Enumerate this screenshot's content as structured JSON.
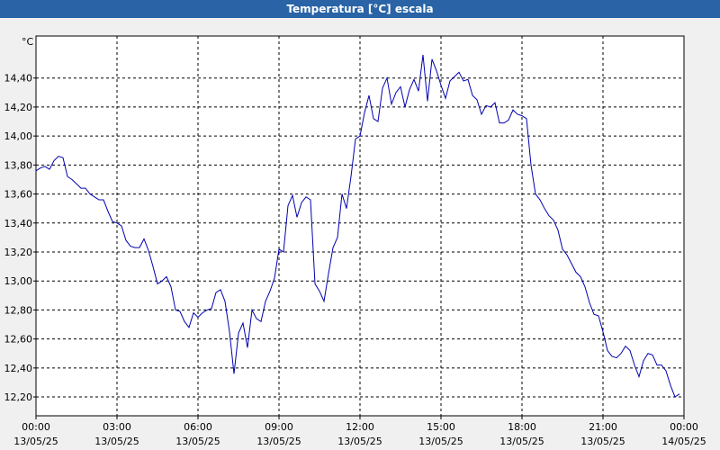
{
  "chart_data": {
    "type": "line",
    "title": "Temperatura [°C] escala",
    "y_label": "°C",
    "xlim": [
      0,
      1440
    ],
    "xticks": [
      {
        "value": 0,
        "label": "00:00",
        "date": "13/05/25"
      },
      {
        "value": 180,
        "label": "03:00",
        "date": "13/05/25"
      },
      {
        "value": 360,
        "label": "06:00",
        "date": "13/05/25"
      },
      {
        "value": 540,
        "label": "09:00",
        "date": "13/05/25"
      },
      {
        "value": 720,
        "label": "12:00",
        "date": "13/05/25"
      },
      {
        "value": 900,
        "label": "15:00",
        "date": "13/05/25"
      },
      {
        "value": 1080,
        "label": "18:00",
        "date": "13/05/25"
      },
      {
        "value": 1260,
        "label": "21:00",
        "date": "13/05/25"
      },
      {
        "value": 1440,
        "label": "00:00",
        "date": "14/05/25"
      }
    ],
    "ylim": [
      12.07,
      14.69
    ],
    "yticks": [
      {
        "value": 12.2,
        "label": "12,20"
      },
      {
        "value": 12.4,
        "label": "12,40"
      },
      {
        "value": 12.6,
        "label": "12,60"
      },
      {
        "value": 12.8,
        "label": "12,80"
      },
      {
        "value": 13.0,
        "label": "13,00"
      },
      {
        "value": 13.2,
        "label": "13,20"
      },
      {
        "value": 13.4,
        "label": "13,40"
      },
      {
        "value": 13.6,
        "label": "13,60"
      },
      {
        "value": 13.8,
        "label": "13,80"
      },
      {
        "value": 14.0,
        "label": "14,00"
      },
      {
        "value": 14.2,
        "label": "14,20"
      },
      {
        "value": 14.4,
        "label": "14,40"
      }
    ],
    "grid": true,
    "x": [
      0,
      10,
      20,
      30,
      40,
      50,
      60,
      70,
      80,
      90,
      100,
      110,
      120,
      130,
      140,
      150,
      160,
      170,
      180,
      190,
      200,
      210,
      220,
      230,
      240,
      250,
      260,
      270,
      280,
      290,
      300,
      310,
      320,
      330,
      340,
      350,
      360,
      370,
      380,
      390,
      400,
      410,
      420,
      430,
      440,
      450,
      460,
      470,
      480,
      490,
      500,
      510,
      520,
      530,
      540,
      550,
      560,
      570,
      580,
      590,
      600,
      610,
      620,
      630,
      640,
      650,
      660,
      670,
      680,
      690,
      700,
      710,
      720,
      730,
      740,
      750,
      760,
      770,
      780,
      790,
      800,
      810,
      820,
      830,
      840,
      850,
      860,
      870,
      880,
      890,
      900,
      910,
      920,
      930,
      940,
      950,
      960,
      970,
      980,
      990,
      1000,
      1010,
      1020,
      1030,
      1040,
      1050,
      1060,
      1070,
      1080,
      1090,
      1100,
      1110,
      1120,
      1130,
      1140,
      1150,
      1160,
      1170,
      1180,
      1190,
      1200,
      1210,
      1220,
      1230,
      1240,
      1250,
      1260,
      1270,
      1280,
      1290,
      1300,
      1310,
      1320,
      1330,
      1340,
      1350,
      1360,
      1370,
      1380,
      1390,
      1400,
      1410,
      1420,
      1430
    ],
    "series": [
      {
        "color": "#0000b0",
        "values": [
          13.76,
          13.78,
          13.79,
          13.77,
          13.83,
          13.86,
          13.85,
          13.72,
          13.7,
          13.67,
          13.64,
          13.64,
          13.6,
          13.58,
          13.56,
          13.56,
          13.48,
          13.41,
          13.4,
          13.38,
          13.28,
          13.24,
          13.23,
          13.23,
          13.29,
          13.21,
          13.1,
          12.98,
          13.0,
          13.03,
          12.96,
          12.8,
          12.79,
          12.72,
          12.68,
          12.78,
          12.75,
          12.78,
          12.8,
          12.81,
          12.92,
          12.94,
          12.86,
          12.65,
          12.36,
          12.64,
          12.71,
          12.54,
          12.8,
          12.74,
          12.72,
          12.86,
          12.93,
          13.02,
          13.22,
          13.2,
          13.52,
          13.59,
          13.44,
          13.54,
          13.58,
          13.56,
          12.98,
          12.93,
          12.86,
          13.05,
          13.23,
          13.3,
          13.6,
          13.5,
          13.72,
          13.98,
          14.0,
          14.16,
          14.28,
          14.12,
          14.1,
          14.33,
          14.4,
          14.22,
          14.3,
          14.34,
          14.2,
          14.32,
          14.39,
          14.31,
          14.56,
          14.24,
          14.53,
          14.45,
          14.35,
          14.26,
          14.38,
          14.41,
          14.44,
          14.38,
          14.39,
          14.28,
          14.25,
          14.15,
          14.21,
          14.2,
          14.23,
          14.09,
          14.09,
          14.11,
          14.18,
          14.15,
          14.14,
          14.12,
          13.8,
          13.6,
          13.56,
          13.5,
          13.45,
          13.42,
          13.35,
          13.22,
          13.18,
          13.12,
          13.06,
          13.03,
          12.96,
          12.85,
          12.77,
          12.76,
          12.65,
          12.52,
          12.48,
          12.47,
          12.5,
          12.55,
          12.52,
          12.42,
          12.34,
          12.45,
          12.5,
          12.49,
          12.42,
          12.42,
          12.38,
          12.28,
          12.2,
          12.22
        ]
      }
    ]
  }
}
